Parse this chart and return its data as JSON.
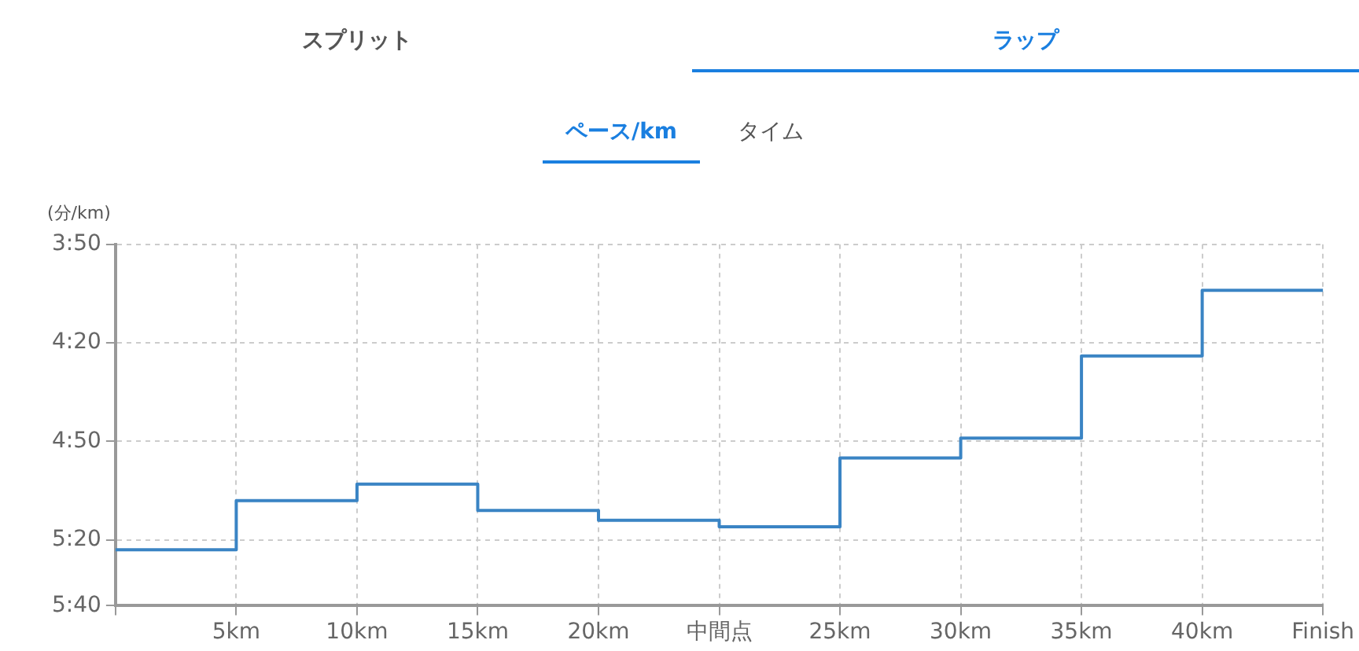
{
  "chart_data": {
    "type": "step",
    "annotations": [
      "スプリット",
      "ラップ",
      "ペース/km",
      "タイム"
    ],
    "ylabel": "(分/km)",
    "categories": [
      null,
      "5km",
      "10km",
      "15km",
      "20km",
      "中間点",
      "25km",
      "30km",
      "35km",
      "40km",
      "Finish"
    ],
    "series": [
      {
        "color": "#3a84c4",
        "values": [
          323,
          308,
          303,
          311,
          314,
          316,
          295,
          289,
          264,
          244,
          244
        ]
      }
    ],
    "ylim": [
      340,
      230
    ],
    "yticks": [
      {
        "value": 230,
        "label": "3:50"
      },
      {
        "value": 260,
        "label": "4:20"
      },
      {
        "value": 290,
        "label": "4:50"
      },
      {
        "value": 320,
        "label": "5:20"
      },
      {
        "value": 340,
        "label": "5:40"
      }
    ],
    "grid": true,
    "legend": false
  }
}
